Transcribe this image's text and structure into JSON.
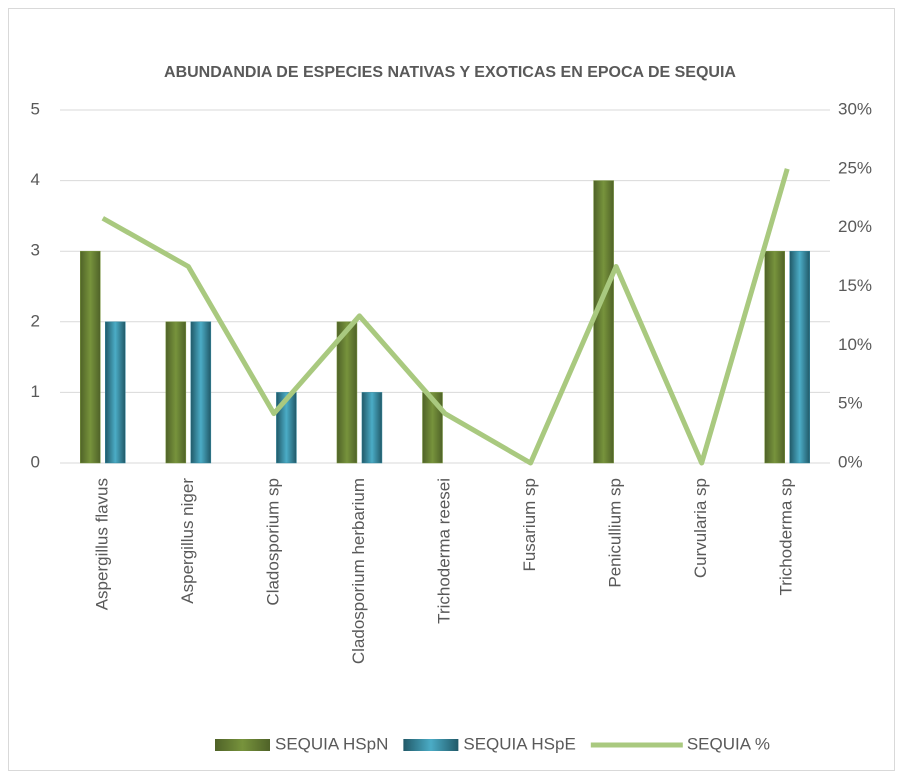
{
  "chart_data": {
    "type": "bar-line",
    "title": "ABUNDANDIA DE ESPECIES NATIVAS Y EXOTICAS EN EPOCA DE SEQUIA",
    "categories": [
      "Aspergillus flavus",
      "Aspergillus niger",
      "Cladosporium sp",
      "Cladosporium herbarium",
      "Trichoderma reesei",
      "Fusarium sp",
      "Penicullium sp",
      "Curvularia sp",
      "Trichoderma sp"
    ],
    "series": [
      {
        "name": "SEQUIA HSpN",
        "type": "bar",
        "color": "#77933c",
        "values": [
          3,
          2,
          0,
          2,
          1,
          0,
          4,
          0,
          3
        ]
      },
      {
        "name": "SEQUIA HSpE",
        "type": "bar",
        "color": "#31859c",
        "values": [
          2,
          2,
          1,
          1,
          0,
          0,
          0,
          0,
          3
        ]
      },
      {
        "name": "SEQUIA %",
        "type": "line",
        "axis": "y2",
        "color": "#a9c97f",
        "values": [
          20.8,
          16.7,
          4.2,
          12.5,
          4.2,
          0,
          16.7,
          0,
          25
        ]
      }
    ],
    "ylim": [
      0,
      5
    ],
    "yticks": [
      0,
      1,
      2,
      3,
      4,
      5
    ],
    "y2lim": [
      0,
      30
    ],
    "y2ticks": [
      {
        "value": 0,
        "label": "0%"
      },
      {
        "value": 5,
        "label": "5%"
      },
      {
        "value": 10,
        "label": "10%"
      },
      {
        "value": 15,
        "label": "15%"
      },
      {
        "value": 20,
        "label": "20%"
      },
      {
        "value": 25,
        "label": "25%"
      },
      {
        "value": 30,
        "label": "30%"
      }
    ],
    "grid": true,
    "legend": "bottom"
  }
}
